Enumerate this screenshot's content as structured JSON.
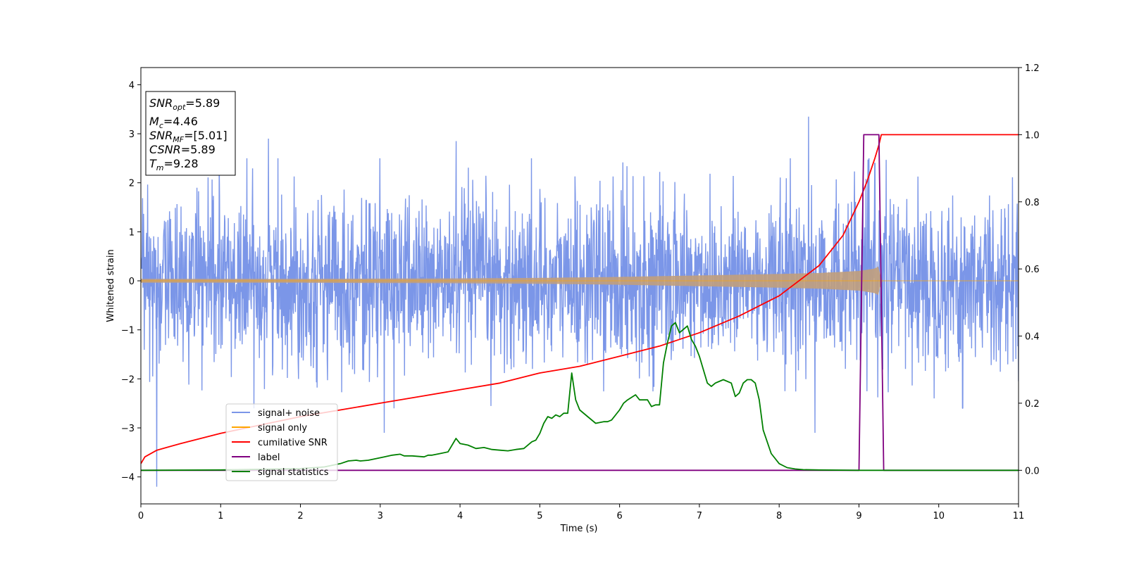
{
  "chart_data": {
    "type": "line",
    "xlabel": "Time (s)",
    "ylabel": "Whitened strain",
    "xlim": [
      0,
      11
    ],
    "ylim": [
      -4.55,
      4.35
    ],
    "y2lim": [
      -0.1,
      1.2
    ],
    "xticks": [
      0,
      1,
      2,
      3,
      4,
      5,
      6,
      7,
      8,
      9,
      10,
      11
    ],
    "yticks": [
      -4,
      -3,
      -2,
      -1,
      0,
      1,
      2,
      3,
      4
    ],
    "y2ticks": [
      "0.0",
      "0.2",
      "0.4",
      "0.6",
      "0.8",
      "1.0",
      "1.2"
    ],
    "grid": false,
    "legend_position": "lower-left",
    "series": [
      {
        "name": "signal+ noise",
        "axis": "left",
        "color": "#4169e1",
        "description_values": "noisy strain approx. within [-2.5, 2.5], outliers near x=0.2 (-4.2), x=8.37 (3.35), x=8.45 (-3.1)",
        "points": [
          [
            0.2,
            -4.2
          ],
          [
            1.6,
            2.9
          ],
          [
            3.05,
            -3.1
          ],
          [
            3.95,
            2.85
          ],
          [
            8.37,
            3.35
          ],
          [
            8.45,
            -3.1
          ],
          [
            9.2,
            2.4
          ],
          [
            10.3,
            -2.6
          ]
        ]
      },
      {
        "name": "signal only",
        "axis": "left",
        "color": "#ffa500",
        "envelope": [
          [
            0,
            0.04
          ],
          [
            2,
            0.04
          ],
          [
            4,
            0.05
          ],
          [
            5,
            0.06
          ],
          [
            6,
            0.08
          ],
          [
            7,
            0.11
          ],
          [
            8,
            0.14
          ],
          [
            8.5,
            0.16
          ],
          [
            9,
            0.2
          ],
          [
            9.2,
            0.25
          ],
          [
            9.25,
            0.3
          ],
          [
            9.28,
            0.0
          ],
          [
            11,
            0.0
          ]
        ]
      },
      {
        "name": "cumilative SNR",
        "axis": "right",
        "color": "#ff0000",
        "x": [
          0,
          0.05,
          0.2,
          0.5,
          1.0,
          1.5,
          2.0,
          2.5,
          3.0,
          3.5,
          4.0,
          4.5,
          5.0,
          5.5,
          6.0,
          6.5,
          7.0,
          7.5,
          8.0,
          8.5,
          8.8,
          9.0,
          9.1,
          9.2,
          9.25,
          9.28,
          11
        ],
        "values": [
          0.02,
          0.04,
          0.06,
          0.08,
          0.11,
          0.135,
          0.16,
          0.18,
          0.2,
          0.22,
          0.24,
          0.26,
          0.29,
          0.31,
          0.34,
          0.37,
          0.41,
          0.46,
          0.52,
          0.61,
          0.7,
          0.8,
          0.86,
          0.93,
          0.97,
          1.0,
          1.0
        ]
      },
      {
        "name": "label",
        "axis": "right",
        "color": "#800080",
        "x": [
          0,
          9.0,
          9.06,
          9.25,
          9.31,
          11
        ],
        "values": [
          0,
          0,
          1,
          1,
          0,
          0
        ]
      },
      {
        "name": "signal statistics",
        "axis": "right",
        "color": "#008000",
        "x": [
          0,
          1.0,
          2.0,
          2.3,
          2.5,
          2.6,
          2.7,
          2.75,
          2.85,
          2.95,
          3.05,
          3.15,
          3.25,
          3.3,
          3.4,
          3.55,
          3.6,
          3.65,
          3.75,
          3.85,
          3.95,
          4.0,
          4.1,
          4.2,
          4.3,
          4.4,
          4.5,
          4.6,
          4.7,
          4.8,
          4.9,
          4.95,
          5.0,
          5.05,
          5.1,
          5.15,
          5.2,
          5.25,
          5.3,
          5.35,
          5.4,
          5.45,
          5.5,
          5.6,
          5.7,
          5.8,
          5.85,
          5.9,
          6.0,
          6.05,
          6.1,
          6.2,
          6.25,
          6.3,
          6.35,
          6.4,
          6.45,
          6.5,
          6.55,
          6.6,
          6.65,
          6.7,
          6.75,
          6.8,
          6.85,
          6.9,
          6.95,
          7.0,
          7.1,
          7.15,
          7.2,
          7.3,
          7.4,
          7.45,
          7.5,
          7.55,
          7.6,
          7.65,
          7.7,
          7.75,
          7.8,
          7.9,
          8.0,
          8.1,
          8.2,
          8.3,
          8.5,
          9.0,
          11
        ],
        "values": [
          0,
          0.001,
          0.005,
          0.01,
          0.02,
          0.028,
          0.03,
          0.028,
          0.03,
          0.035,
          0.04,
          0.045,
          0.048,
          0.043,
          0.043,
          0.04,
          0.045,
          0.045,
          0.05,
          0.055,
          0.095,
          0.08,
          0.075,
          0.065,
          0.068,
          0.062,
          0.06,
          0.058,
          0.062,
          0.065,
          0.085,
          0.09,
          0.11,
          0.14,
          0.16,
          0.155,
          0.165,
          0.16,
          0.17,
          0.17,
          0.29,
          0.21,
          0.18,
          0.16,
          0.14,
          0.145,
          0.145,
          0.15,
          0.18,
          0.2,
          0.21,
          0.225,
          0.21,
          0.21,
          0.21,
          0.19,
          0.195,
          0.195,
          0.32,
          0.38,
          0.43,
          0.44,
          0.41,
          0.42,
          0.43,
          0.39,
          0.37,
          0.34,
          0.26,
          0.25,
          0.26,
          0.27,
          0.26,
          0.22,
          0.23,
          0.26,
          0.27,
          0.27,
          0.26,
          0.21,
          0.12,
          0.05,
          0.02,
          0.008,
          0.004,
          0.002,
          0.001,
          0.0,
          0.0
        ]
      }
    ]
  },
  "info_box": {
    "snr_opt_value": "=5.89",
    "mc_value": "=4.46",
    "snr_mf_value": "=[5.01]",
    "csnr_value": "=5.89",
    "tm_value": "=9.28"
  },
  "colors": {
    "signal_noise": "#7b96e8",
    "signal_only": "#ffa500",
    "signal_only_fill": "#c19f7c",
    "cumulative_snr": "#ff0000",
    "label": "#800080",
    "signal_statistics": "#008000"
  }
}
